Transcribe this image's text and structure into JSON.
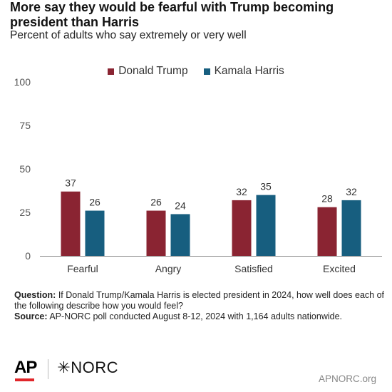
{
  "title": "More say they would be fearful with Trump becoming president than Harris",
  "subtitle": "Percent of adults who say extremely or very well",
  "chart_data": {
    "type": "bar",
    "categories": [
      "Fearful",
      "Angry",
      "Satisfied",
      "Excited"
    ],
    "series": [
      {
        "name": "Donald Trump",
        "values": [
          37,
          26,
          32,
          28
        ],
        "color": "#8a2432"
      },
      {
        "name": "Kamala Harris",
        "values": [
          26,
          24,
          35,
          32
        ],
        "color": "#175e7f"
      }
    ],
    "yticks": [
      "0",
      "25",
      "50",
      "75",
      "100"
    ],
    "ylim": [
      0,
      100
    ],
    "legend_position": "top-center",
    "grid": false
  },
  "note": {
    "question_label": "Question:",
    "question_text": "If Donald Trump/Kamala Harris is elected president in 2024, how well does each of the following describe how you would feel?",
    "source_label": "Source:",
    "source_text": "AP-NORC poll conducted August 8-12, 2024 with 1,164 adults nationwide."
  },
  "footer": {
    "ap_logo": "AP",
    "norc_logo": "✳NORC",
    "site": "APNORC.org"
  }
}
